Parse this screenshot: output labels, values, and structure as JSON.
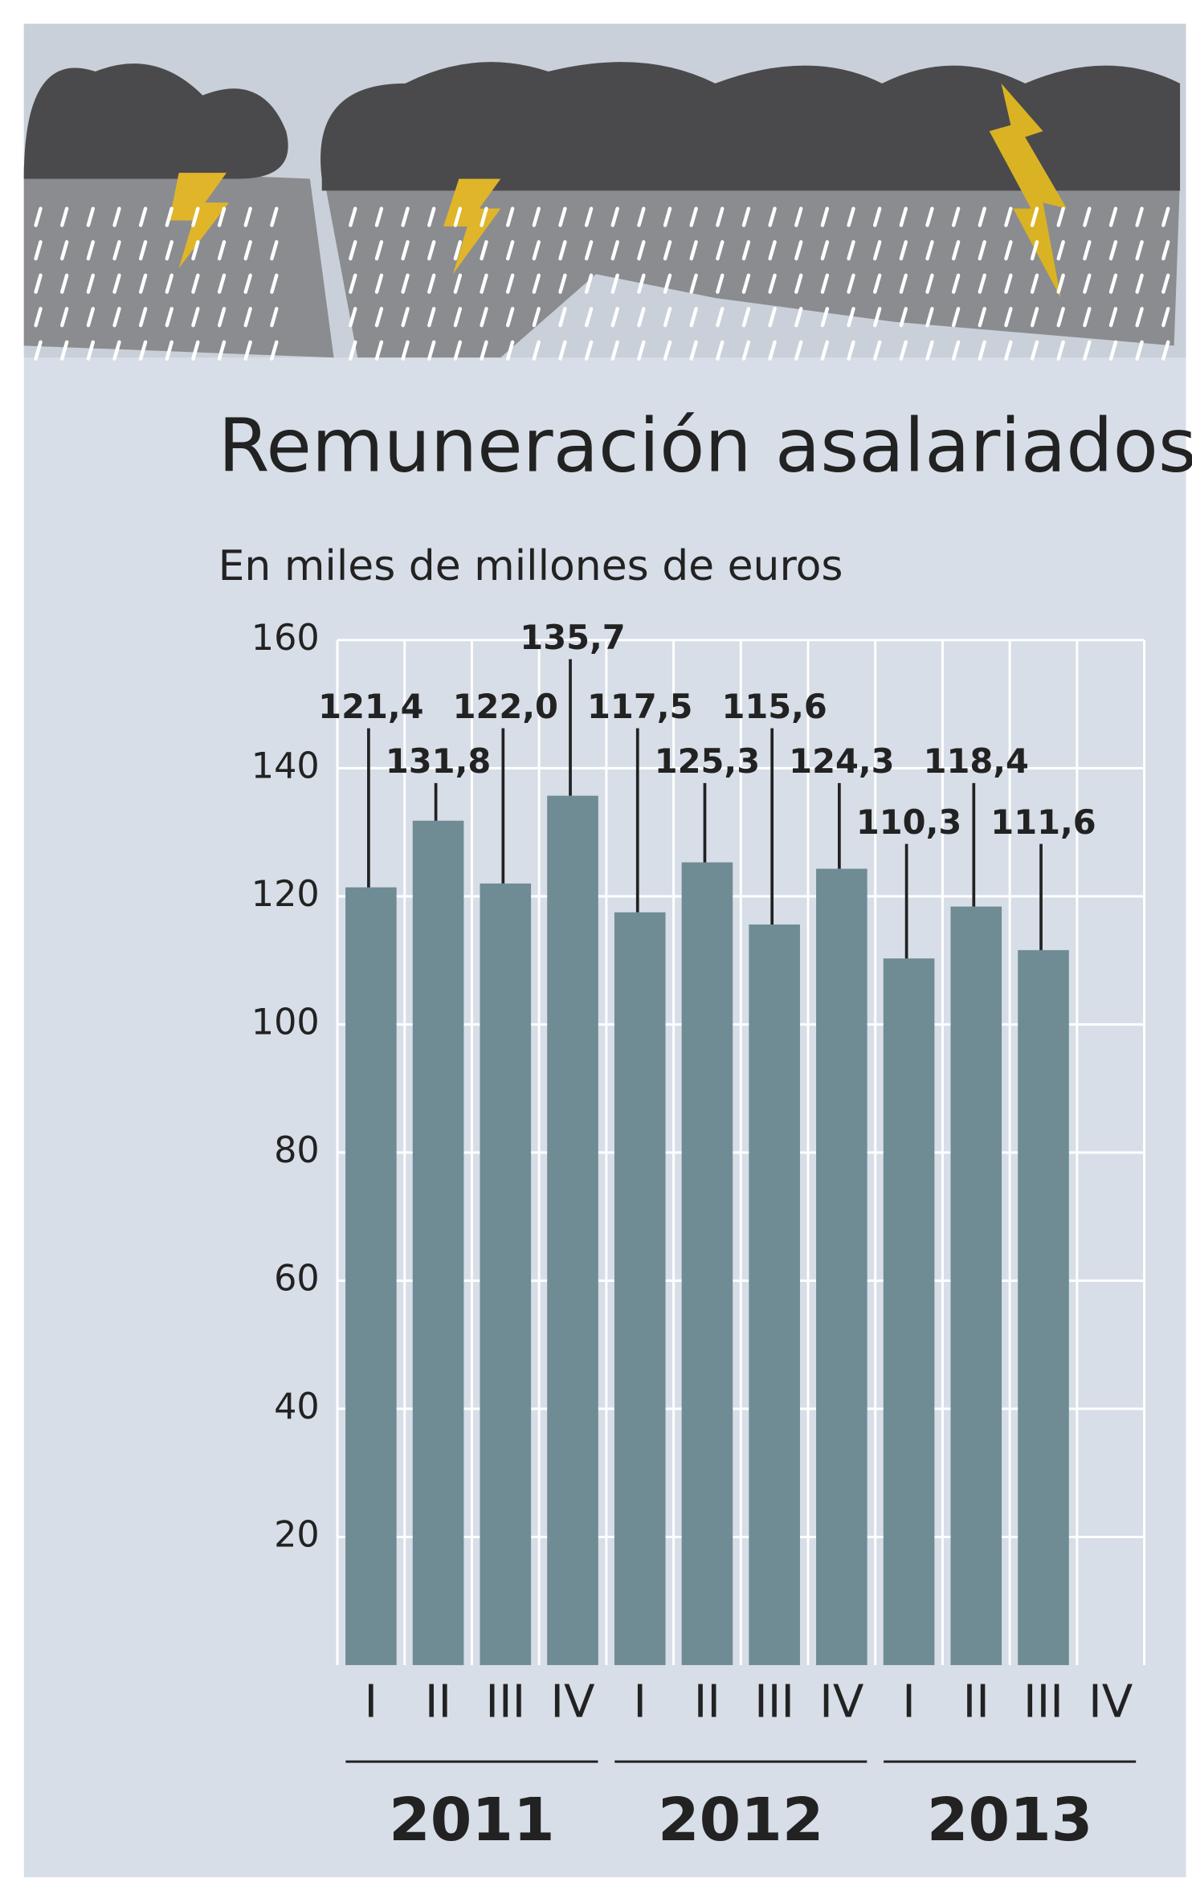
{
  "chart_data": {
    "type": "bar",
    "title": "Remuneración asalariados",
    "subtitle": "En miles de millones de euros",
    "categories": [
      "I",
      "II",
      "III",
      "IV",
      "I",
      "II",
      "III",
      "IV",
      "I",
      "II",
      "III",
      "IV"
    ],
    "values": [
      121.4,
      131.8,
      122.0,
      135.7,
      117.5,
      125.3,
      115.6,
      124.3,
      110.3,
      118.4,
      111.6,
      null
    ],
    "value_labels": [
      "121,4",
      "131,8",
      "122,0",
      "135,7",
      "117,5",
      "125,3",
      "115,6",
      "124,3",
      "110,3",
      "118,4",
      "111,6",
      null
    ],
    "year_groups": [
      "2011",
      "2012",
      "2013"
    ],
    "color": "#6f8c95",
    "ylim": [
      0,
      160
    ],
    "yticks": [
      20,
      40,
      60,
      80,
      100,
      120,
      140,
      160
    ],
    "grid": true
  }
}
